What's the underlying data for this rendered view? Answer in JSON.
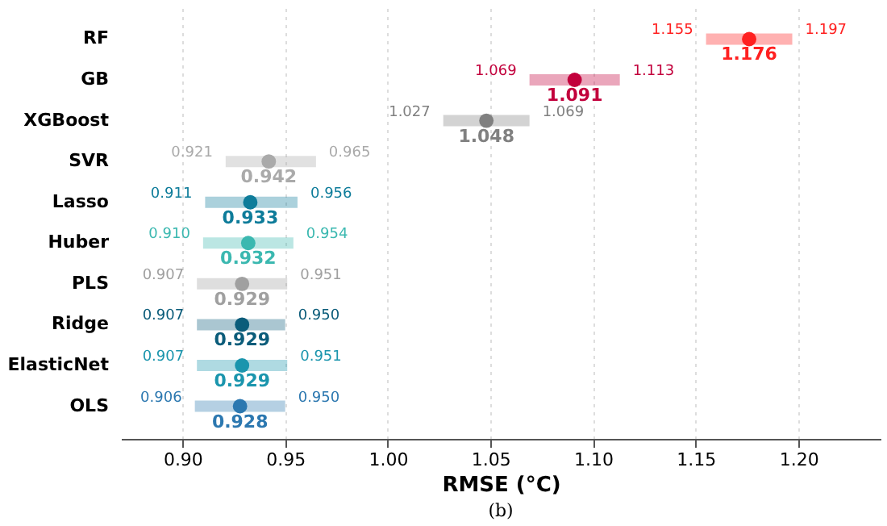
{
  "chart_data": {
    "type": "scatter",
    "orientation": "horizontal",
    "xlabel": "RMSE (°C)",
    "annotations": [
      "(b)",
      {
        "text": "1.155",
        "x": 1.155,
        "y": "RF"
      },
      {
        "text": "1.197",
        "x": 1.197,
        "y": "RF"
      },
      {
        "text": "1.069",
        "x": 1.069,
        "y": "GB"
      },
      {
        "text": "1.113",
        "x": 1.113,
        "y": "GB"
      },
      {
        "text": "1.027",
        "x": 1.027,
        "y": "XGBoost"
      },
      {
        "text": "1.069",
        "x": 1.069,
        "y": "XGBoost"
      },
      {
        "text": "0.921",
        "x": 0.921,
        "y": "SVR"
      },
      {
        "text": "0.965",
        "x": 0.965,
        "y": "SVR"
      },
      {
        "text": "0.911",
        "x": 0.911,
        "y": "Lasso"
      },
      {
        "text": "0.956",
        "x": 0.956,
        "y": "Lasso"
      },
      {
        "text": "0.910",
        "x": 0.91,
        "y": "Huber"
      },
      {
        "text": "0.954",
        "x": 0.954,
        "y": "Huber"
      },
      {
        "text": "0.907",
        "x": 0.907,
        "y": "PLS"
      },
      {
        "text": "0.951",
        "x": 0.951,
        "y": "PLS"
      },
      {
        "text": "0.907",
        "x": 0.907,
        "y": "Ridge"
      },
      {
        "text": "0.950",
        "x": 0.95,
        "y": "Ridge"
      },
      {
        "text": "0.907",
        "x": 0.907,
        "y": "ElasticNet"
      },
      {
        "text": "0.951",
        "x": 0.951,
        "y": "ElasticNet"
      },
      {
        "text": "0.906",
        "x": 0.906,
        "y": "OLS"
      },
      {
        "text": "0.950",
        "x": 0.95,
        "y": "OLS"
      }
    ],
    "categories": [
      "RF",
      "GB",
      "XGBoost",
      "SVR",
      "Lasso",
      "Huber",
      "PLS",
      "Ridge",
      "ElasticNet",
      "OLS"
    ],
    "values": [
      1.176,
      1.091,
      1.048,
      0.942,
      0.933,
      0.932,
      0.929,
      0.929,
      0.929,
      0.928
    ],
    "errors": [
      [
        1.155,
        1.197
      ],
      [
        1.069,
        1.113
      ],
      [
        1.027,
        1.069
      ],
      [
        0.921,
        0.965
      ],
      [
        0.911,
        0.956
      ],
      [
        0.91,
        0.954
      ],
      [
        0.907,
        0.951
      ],
      [
        0.907,
        0.95
      ],
      [
        0.907,
        0.951
      ],
      [
        0.906,
        0.95
      ]
    ],
    "colors": [
      "#ff2020",
      "#c2003c",
      "#808080",
      "#aaaaaa",
      "#0e7c9a",
      "#3bb8b0",
      "#a0a0a0",
      "#0b5c7a",
      "#1a95ad",
      "#2c78b0"
    ],
    "data_labels": true,
    "marker": "circle",
    "grid": "x",
    "xlim": [
      0.87,
      1.24
    ],
    "xticks": [
      {
        "value": 0.9,
        "label": "0.90"
      },
      0.95,
      {
        "value": 1.0,
        "label": "1.00"
      },
      1.05,
      {
        "value": 1.1,
        "label": "1.10"
      },
      1.15,
      {
        "value": 1.2,
        "label": "1.20"
      }
    ]
  }
}
